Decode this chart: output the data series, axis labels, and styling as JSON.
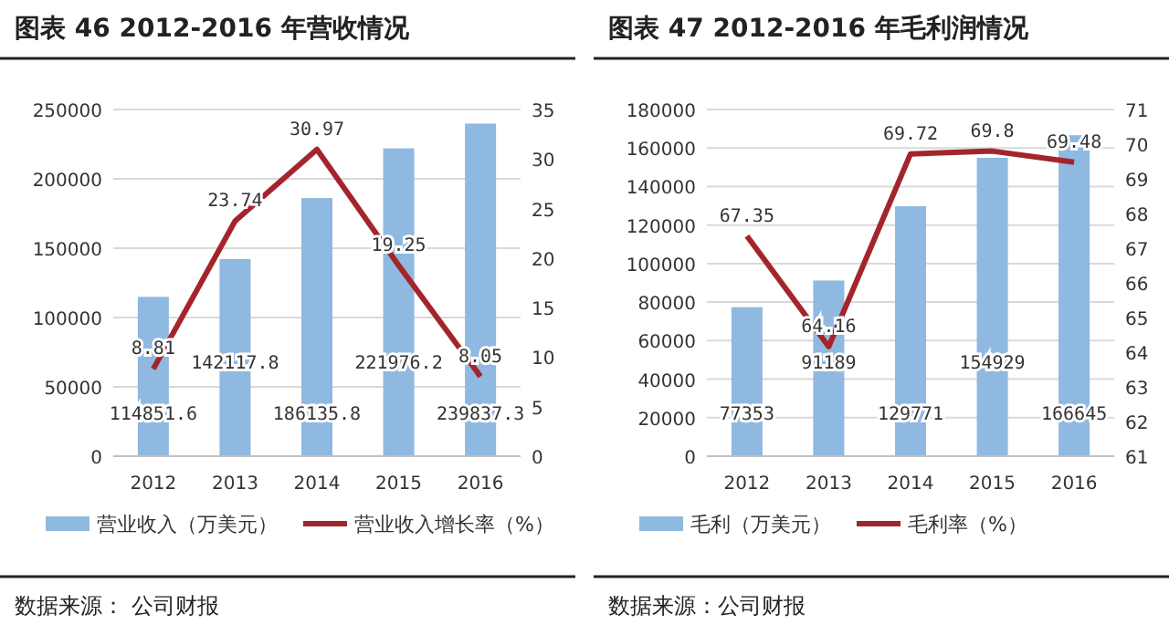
{
  "chart_data": [
    {
      "type": "bar",
      "title": "图表 46 2012-2016 年营收情况",
      "categories": [
        "2012",
        "2013",
        "2014",
        "2015",
        "2016"
      ],
      "series": [
        {
          "name": "营业收入（万美元）",
          "color": "#8fb9e0",
          "values": [
            114851.6,
            142117.8,
            186135.8,
            221976.2,
            239837.3
          ]
        },
        {
          "name": "营业收入增长率（%）",
          "type": "line",
          "axis": "y2",
          "color": "#a3252b",
          "values": [
            8.81,
            23.74,
            30.97,
            19.25,
            8.05
          ]
        }
      ],
      "ylim": [
        0,
        250000
      ],
      "yticks": [
        0,
        50000,
        100000,
        150000,
        200000,
        250000
      ],
      "y2lim": [
        0,
        35
      ],
      "y2ticks": [
        0,
        5,
        10,
        15,
        20,
        25,
        30,
        35
      ],
      "grid": "y",
      "legend": "bottom",
      "data_labels": true,
      "annotations": [
        "数据来源： 公司财报"
      ]
    },
    {
      "type": "bar",
      "title": "图表 47 2012-2016 年毛利润情况",
      "categories": [
        "2012",
        "2013",
        "2014",
        "2015",
        "2016"
      ],
      "series": [
        {
          "name": "毛利（万美元）",
          "color": "#8fb9e0",
          "values": [
            77353,
            91189,
            129771,
            154929,
            166645
          ]
        },
        {
          "name": "毛利率（%）",
          "type": "line",
          "axis": "y2",
          "color": "#a3252b",
          "values": [
            67.35,
            64.16,
            69.72,
            69.8,
            69.48
          ]
        }
      ],
      "ylim": [
        0,
        180000
      ],
      "yticks": [
        0,
        20000,
        40000,
        60000,
        80000,
        100000,
        120000,
        140000,
        160000,
        180000
      ],
      "y2lim": [
        61,
        71
      ],
      "y2ticks": [
        61,
        62,
        63,
        64,
        65,
        66,
        67,
        68,
        69,
        70,
        71
      ],
      "grid": "y",
      "legend": "bottom",
      "data_labels": true,
      "annotations": [
        "数据来源：公司财报"
      ]
    }
  ]
}
